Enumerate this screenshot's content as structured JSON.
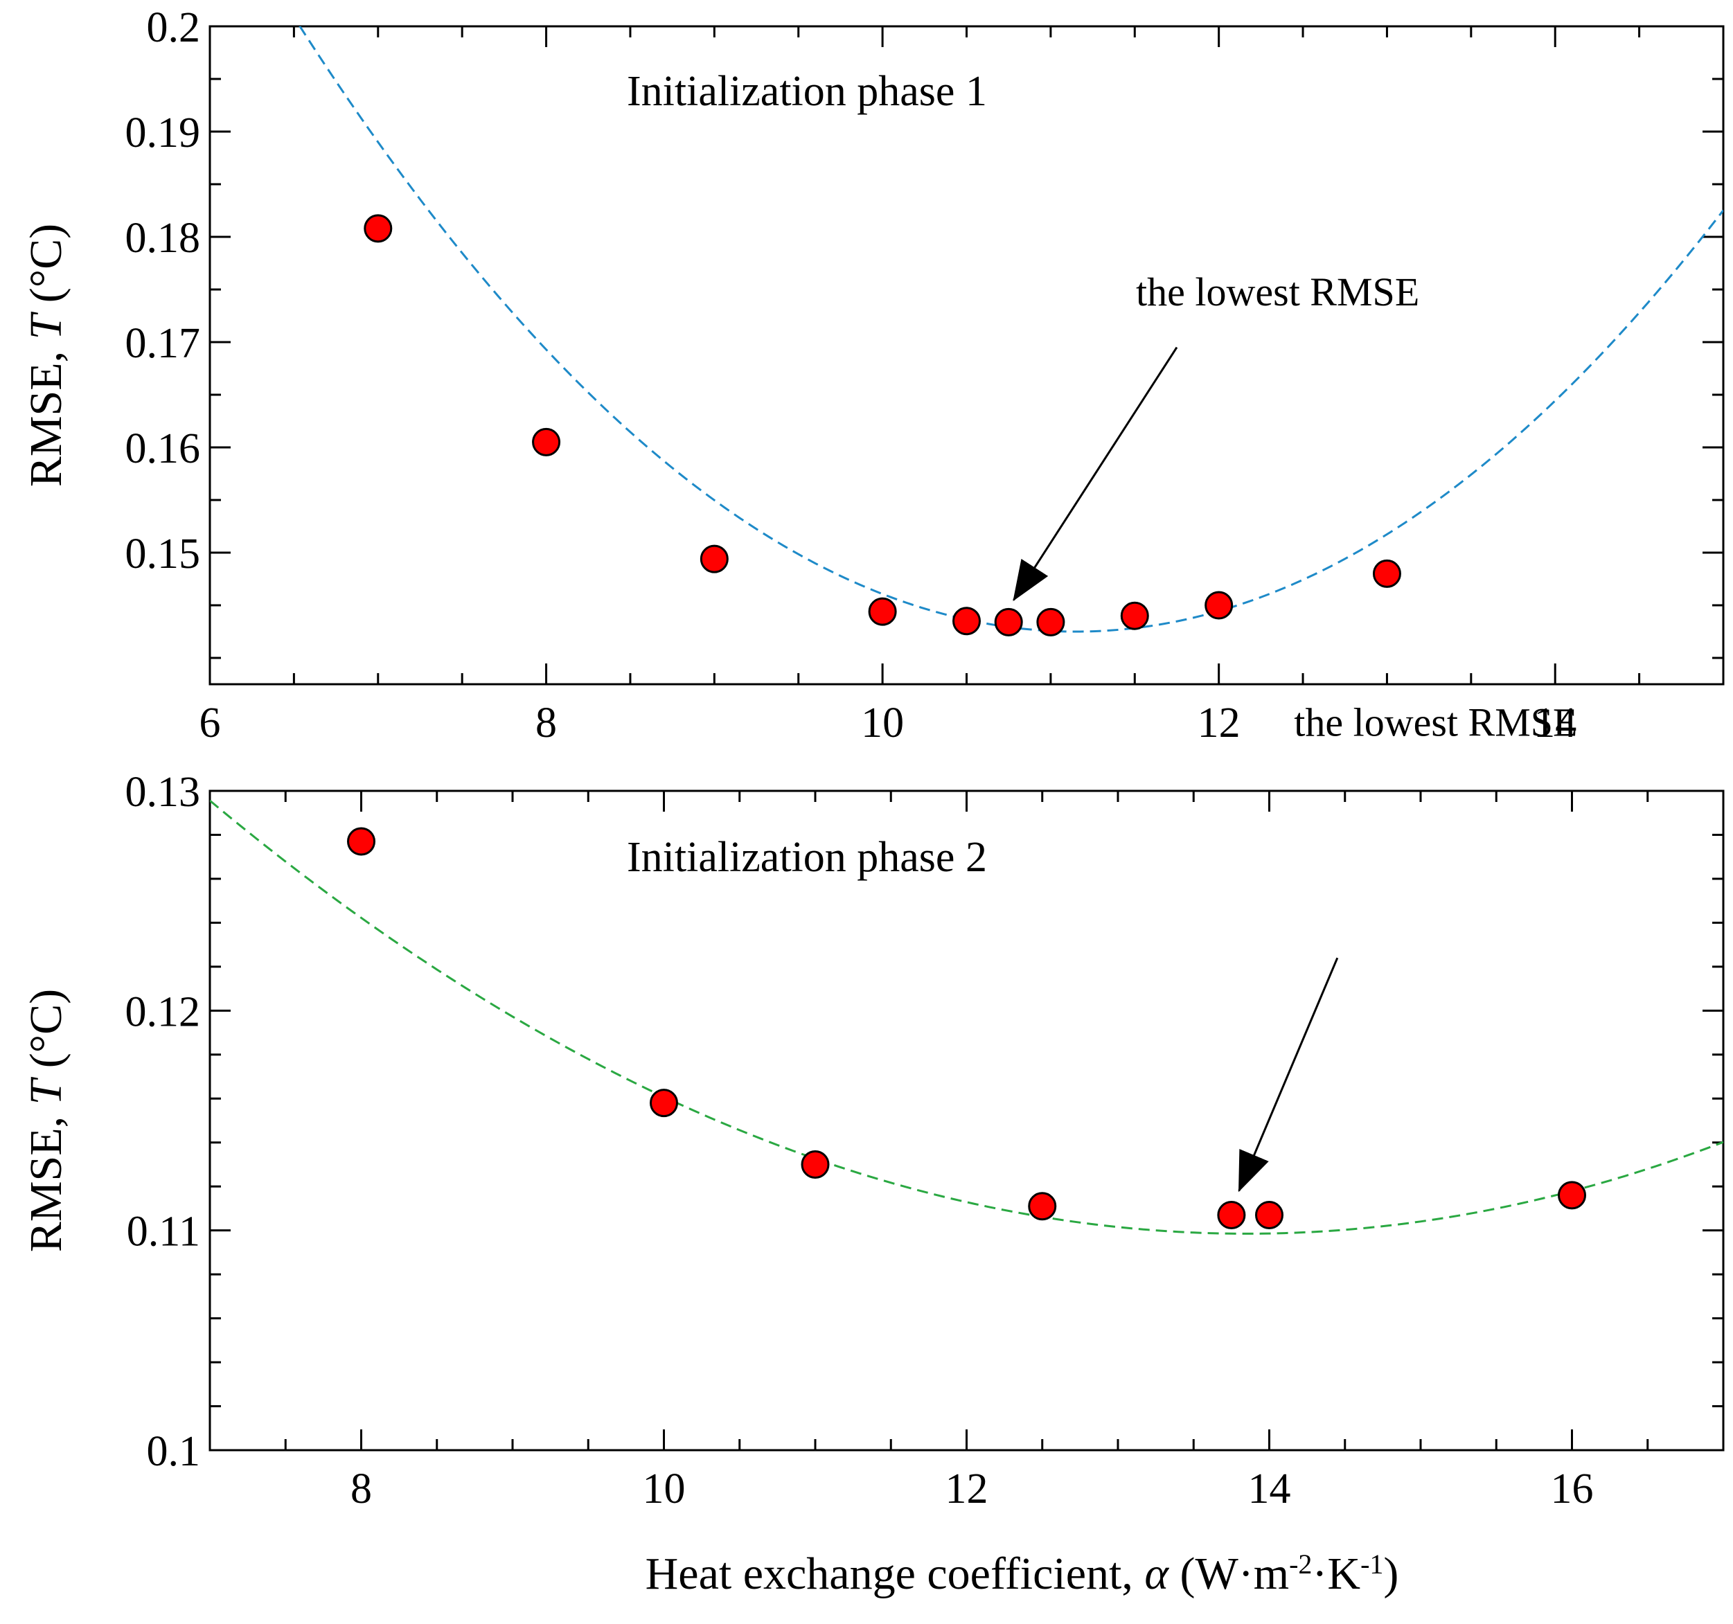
{
  "chart_data": [
    {
      "type": "scatter",
      "title": "Initialization phase 1",
      "xlabel": "",
      "ylabel": {
        "prefix": "RMSE, ",
        "italic": "T",
        "suffix": " (°C)"
      },
      "xlim": [
        6,
        15
      ],
      "ylim": [
        0.1375,
        0.2
      ],
      "x_ticks": [
        6,
        8,
        10,
        12,
        14
      ],
      "x_minor_step": 0.5,
      "y_ticks": [
        0.15,
        0.16,
        0.17,
        0.18,
        0.19,
        0.2
      ],
      "y_tick_labels": [
        "0.15",
        "0.16",
        "0.17",
        "0.18",
        "0.19",
        "0.2"
      ],
      "y_minor_step": 0.005,
      "series": [
        {
          "name": "RMSE",
          "marker_color": "#ff0000",
          "x": [
            7,
            8,
            9,
            10,
            10.5,
            10.75,
            11,
            11.5,
            12,
            13
          ],
          "y": [
            0.1808,
            0.1605,
            0.1494,
            0.1444,
            0.1435,
            0.1434,
            0.1434,
            0.144,
            0.145,
            0.148
          ]
        },
        {
          "name": "fit",
          "line_color": "#1e8ac8",
          "style": "dashed",
          "quadratic": {
            "x_min": 11.15,
            "y_min": 0.1425,
            "a": 0.0027
          }
        }
      ],
      "annotation": {
        "text": "the lowest RMSE",
        "text_at": [
          12.35,
          0.1735
        ],
        "tail": [
          11.75,
          0.1695
        ],
        "head": [
          10.78,
          0.1455
        ]
      }
    },
    {
      "type": "scatter",
      "title": "Initialization phase 2",
      "xlabel": {
        "prefix": "Heat exchange coefficient, ",
        "italic": "α",
        "suffix": " (W·m",
        "sup1": "-2",
        "mid": "·K",
        "sup2": "-1",
        "end": ")"
      },
      "ylabel": {
        "prefix": "RMSE, ",
        "italic": "T",
        "suffix": " (°C)"
      },
      "xlim": [
        7,
        17
      ],
      "ylim": [
        0.1,
        0.13
      ],
      "x_ticks": [
        8,
        10,
        12,
        14,
        16
      ],
      "x_minor_step": 0.5,
      "y_ticks": [
        0.1,
        0.11,
        0.12,
        0.13
      ],
      "y_tick_labels": [
        "0.1",
        "0.11",
        "0.12",
        "0.13"
      ],
      "y_minor_step": 0.002,
      "series": [
        {
          "name": "RMSE",
          "marker_color": "#ff0000",
          "x": [
            8,
            10,
            11,
            12.5,
            13.75,
            14,
            16
          ],
          "y": [
            0.1277,
            0.1158,
            0.113,
            0.1111,
            0.1107,
            0.1107,
            0.1116
          ]
        },
        {
          "name": "fit",
          "line_color": "#2aa842",
          "style": "dashed",
          "quadratic": {
            "x_min": 13.85,
            "y_min": 0.10985,
            "a": 0.00042
          }
        }
      ],
      "annotation": {
        "text": "the lowest RMSE",
        "text_at": [
          15.1,
          0.1325
        ],
        "tail": [
          14.45,
          0.1224
        ],
        "head": [
          13.8,
          0.1118
        ]
      }
    }
  ]
}
